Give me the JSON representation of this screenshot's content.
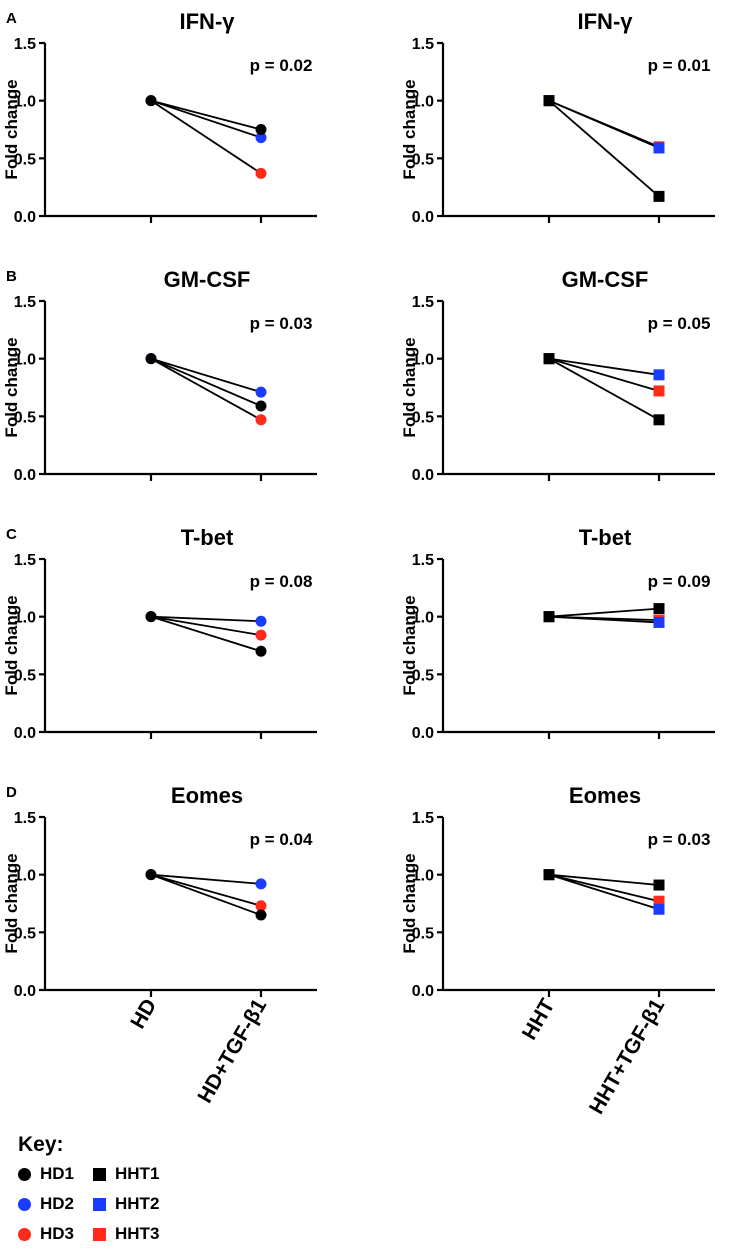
{
  "chart_data": [
    {
      "type": "line",
      "panel_letter": "A",
      "title": "IFN-γ",
      "ylabel": "Fold change",
      "ylim": [
        0,
        1.5
      ],
      "yticks": [
        "0.0",
        "0.5",
        "1.0",
        "1.5"
      ],
      "categories": [
        "HD",
        "HD+TGF-β1"
      ],
      "p_value": "p = 0.02",
      "marker": "circle",
      "series": [
        {
          "name": "HD1",
          "color": "#000000",
          "values": [
            1.0,
            0.75
          ]
        },
        {
          "name": "HD2",
          "color": "#1a3cff",
          "values": [
            1.0,
            0.68
          ]
        },
        {
          "name": "HD3",
          "color": "#ff2a1a",
          "values": [
            1.0,
            0.37
          ]
        }
      ]
    },
    {
      "type": "line",
      "panel_letter": "",
      "title": "IFN-γ",
      "ylabel": "Fold change",
      "ylim": [
        0,
        1.5
      ],
      "yticks": [
        "0.0",
        "0.5",
        "1.0",
        "1.5"
      ],
      "categories": [
        "HHT",
        "HHT+TGF-β1"
      ],
      "p_value": "p = 0.01",
      "marker": "square",
      "series": [
        {
          "name": "HHT1",
          "color": "#000000",
          "values": [
            1.0,
            0.17
          ]
        },
        {
          "name": "HHT2",
          "color": "#1a3cff",
          "values": [
            1.0,
            0.59
          ]
        },
        {
          "name": "HHT3",
          "color": "#ff2a1a",
          "values": [
            1.0,
            0.6
          ]
        }
      ]
    },
    {
      "type": "line",
      "panel_letter": "B",
      "title": "GM-CSF",
      "ylabel": "Fold change",
      "ylim": [
        0,
        1.5
      ],
      "yticks": [
        "0.0",
        "0.5",
        "1.0",
        "1.5"
      ],
      "categories": [
        "HD",
        "HD+TGF-β1"
      ],
      "p_value": "p = 0.03",
      "marker": "circle",
      "series": [
        {
          "name": "HD1",
          "color": "#000000",
          "values": [
            1.0,
            0.59
          ]
        },
        {
          "name": "HD2",
          "color": "#1a3cff",
          "values": [
            1.0,
            0.71
          ]
        },
        {
          "name": "HD3",
          "color": "#ff2a1a",
          "values": [
            1.0,
            0.47
          ]
        }
      ]
    },
    {
      "type": "line",
      "panel_letter": "",
      "title": "GM-CSF",
      "ylabel": "Fold change",
      "ylim": [
        0,
        1.5
      ],
      "yticks": [
        "0.0",
        "0.5",
        "1.0",
        "1.5"
      ],
      "categories": [
        "HHT",
        "HHT+TGF-β1"
      ],
      "p_value": "p = 0.05",
      "marker": "square",
      "series": [
        {
          "name": "HHT1",
          "color": "#000000",
          "values": [
            1.0,
            0.47
          ]
        },
        {
          "name": "HHT2",
          "color": "#1a3cff",
          "values": [
            1.0,
            0.86
          ]
        },
        {
          "name": "HHT3",
          "color": "#ff2a1a",
          "values": [
            1.0,
            0.72
          ]
        }
      ]
    },
    {
      "type": "line",
      "panel_letter": "C",
      "title": "T-bet",
      "ylabel": "Fold change",
      "ylim": [
        0,
        1.5
      ],
      "yticks": [
        "0.0",
        "0.5",
        "1.0",
        "1.5"
      ],
      "categories": [
        "HD",
        "HD+TGF-β1"
      ],
      "p_value": "p = 0.08",
      "marker": "circle",
      "series": [
        {
          "name": "HD1",
          "color": "#000000",
          "values": [
            1.0,
            0.7
          ]
        },
        {
          "name": "HD2",
          "color": "#1a3cff",
          "values": [
            1.0,
            0.96
          ]
        },
        {
          "name": "HD3",
          "color": "#ff2a1a",
          "values": [
            1.0,
            0.84
          ]
        }
      ]
    },
    {
      "type": "line",
      "panel_letter": "",
      "title": "T-bet",
      "ylabel": "Fold change",
      "ylim": [
        0,
        1.5
      ],
      "yticks": [
        "0.0",
        "0.5",
        "1.0",
        "1.5"
      ],
      "categories": [
        "HHT",
        "HHT+TGF-β1"
      ],
      "p_value": "p = 0.09",
      "marker": "square",
      "series": [
        {
          "name": "HHT1",
          "color": "#000000",
          "values": [
            1.0,
            1.07
          ]
        },
        {
          "name": "HHT2",
          "color": "#1a3cff",
          "values": [
            1.0,
            0.95
          ]
        },
        {
          "name": "HHT3",
          "color": "#ff2a1a",
          "values": [
            1.0,
            0.97
          ]
        }
      ]
    },
    {
      "type": "line",
      "panel_letter": "D",
      "title": "Eomes",
      "ylabel": "Fold change",
      "ylim": [
        0,
        1.5
      ],
      "yticks": [
        "0.0",
        "0.5",
        "1.0",
        "1.5"
      ],
      "categories": [
        "HD",
        "HD+TGF-β1"
      ],
      "p_value": "p = 0.04",
      "marker": "circle",
      "series": [
        {
          "name": "HD1",
          "color": "#000000",
          "values": [
            1.0,
            0.65
          ]
        },
        {
          "name": "HD2",
          "color": "#1a3cff",
          "values": [
            1.0,
            0.92
          ]
        },
        {
          "name": "HD3",
          "color": "#ff2a1a",
          "values": [
            1.0,
            0.73
          ]
        }
      ]
    },
    {
      "type": "line",
      "panel_letter": "",
      "title": "Eomes",
      "ylabel": "Fold change",
      "ylim": [
        0,
        1.5
      ],
      "yticks": [
        "0.0",
        "0.5",
        "1.0",
        "1.5"
      ],
      "categories": [
        "HHT",
        "HHT+TGF-β1"
      ],
      "p_value": "p = 0.03",
      "marker": "square",
      "series": [
        {
          "name": "HHT1",
          "color": "#000000",
          "values": [
            1.0,
            0.91
          ]
        },
        {
          "name": "HHT2",
          "color": "#1a3cff",
          "values": [
            1.0,
            0.7
          ]
        },
        {
          "name": "HHT3",
          "color": "#ff2a1a",
          "values": [
            1.0,
            0.77
          ]
        }
      ]
    }
  ],
  "key": {
    "title": "Key:",
    "items": [
      {
        "label": "HD1",
        "shape": "circle",
        "color": "#000000"
      },
      {
        "label": "HHT1",
        "shape": "square",
        "color": "#000000"
      },
      {
        "label": "HD2",
        "shape": "circle",
        "color": "#1a3cff"
      },
      {
        "label": "HHT2",
        "shape": "square",
        "color": "#1a3cff"
      },
      {
        "label": "HD3",
        "shape": "circle",
        "color": "#ff2a1a"
      },
      {
        "label": "HHT3",
        "shape": "square",
        "color": "#ff2a1a"
      }
    ]
  }
}
